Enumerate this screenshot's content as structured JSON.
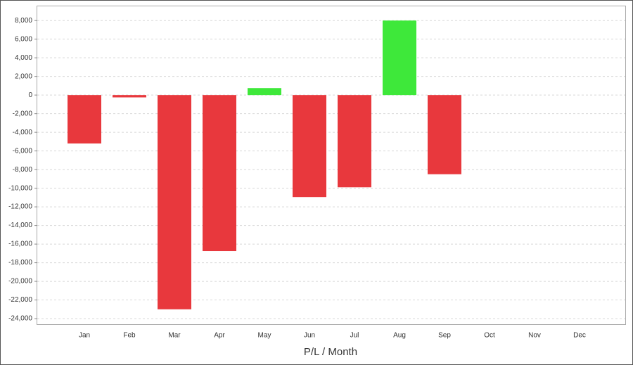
{
  "chart_data": {
    "type": "bar",
    "x_label": "P/L / Month",
    "categories": [
      "Jan",
      "Feb",
      "Mar",
      "Apr",
      "May",
      "Jun",
      "Jul",
      "Aug",
      "Sep",
      "Oct",
      "Nov",
      "Dec"
    ],
    "values": [
      -5200,
      -250,
      -23000,
      -16750,
      750,
      -10950,
      -9900,
      8000,
      -8500,
      null,
      null,
      null
    ],
    "positive_color": "#3ee83a",
    "negative_color": "#e8383d",
    "ylim": [
      -24600,
      9600
    ],
    "yticks": [
      {
        "value": -24000,
        "label": "-24,000"
      },
      {
        "value": -22000,
        "label": "-22,000"
      },
      {
        "value": -20000,
        "label": "-20,000"
      },
      {
        "value": -18000,
        "label": "-18,000"
      },
      {
        "value": -16000,
        "label": "-16,000"
      },
      {
        "value": -14000,
        "label": "-14,000"
      },
      {
        "value": -12000,
        "label": "-12,000"
      },
      {
        "value": -10000,
        "label": "-10,000"
      },
      {
        "value": -8000,
        "label": "-8,000"
      },
      {
        "value": -6000,
        "label": "-6,000"
      },
      {
        "value": -4000,
        "label": "-4,000"
      },
      {
        "value": -2000,
        "label": "-2,000"
      },
      0,
      {
        "value": 2000,
        "label": "2,000"
      },
      {
        "value": 4000,
        "label": "4,000"
      },
      {
        "value": 6000,
        "label": "6,000"
      },
      {
        "value": 8000,
        "label": "8,000"
      }
    ],
    "grid": true
  }
}
